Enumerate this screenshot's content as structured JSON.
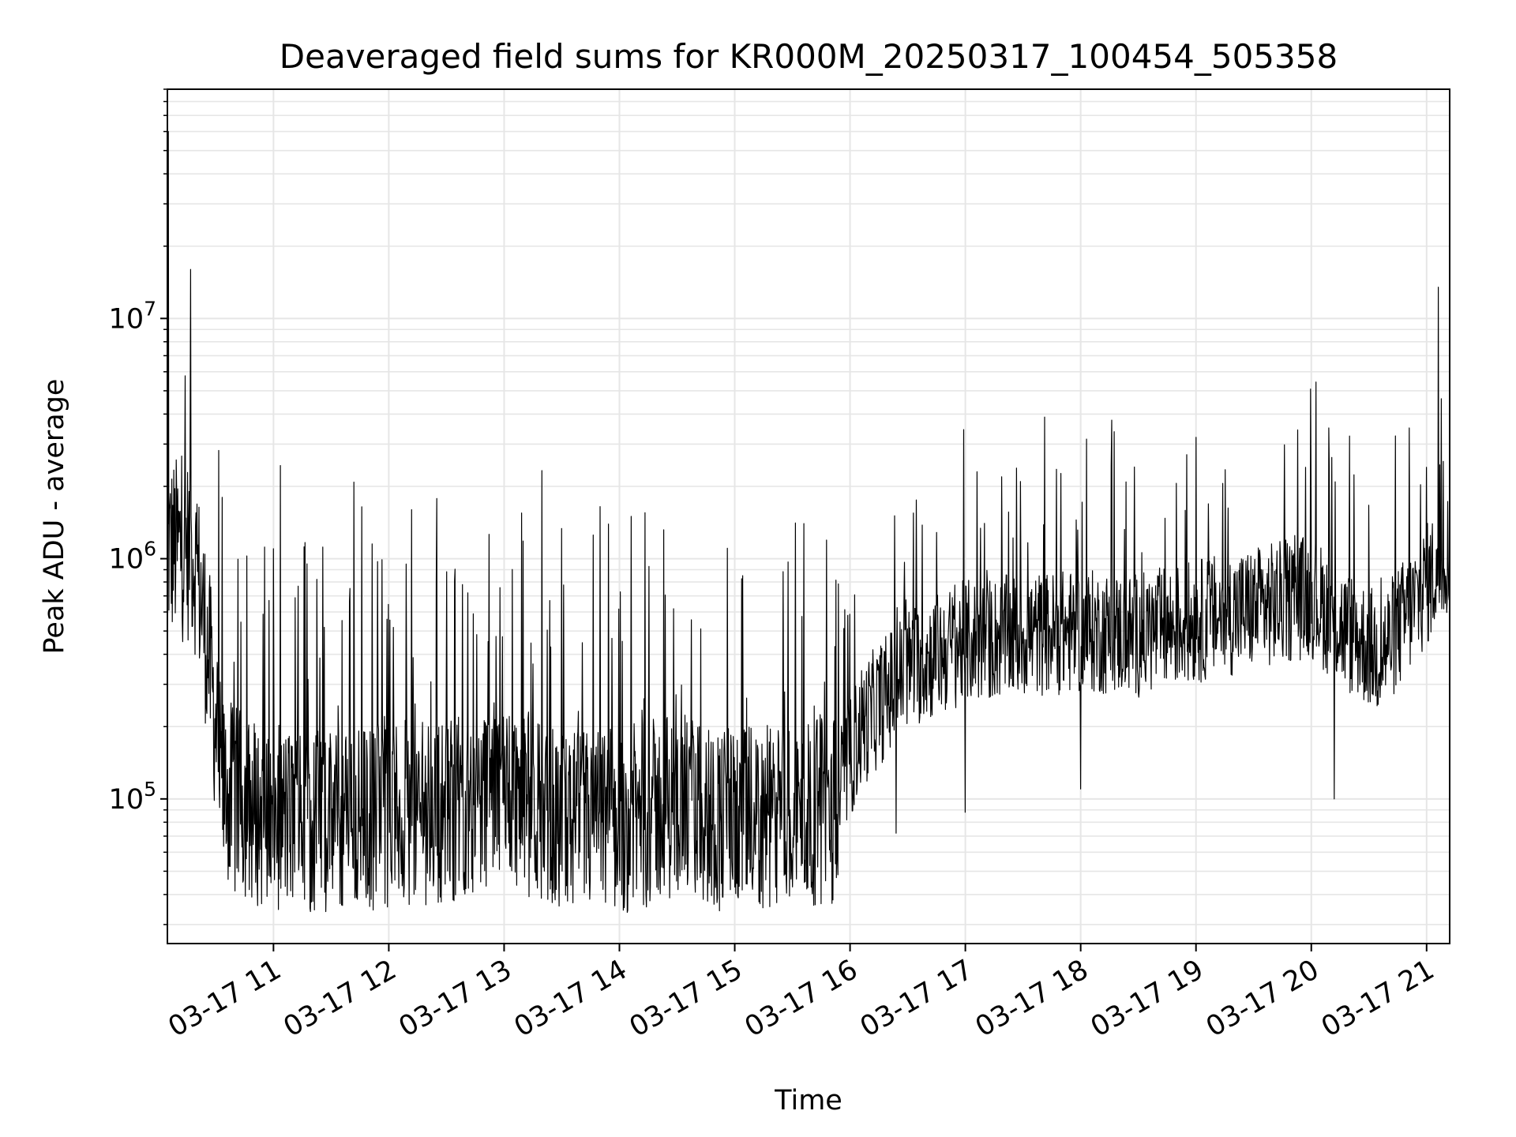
{
  "chart_data": {
    "type": "line",
    "title": "Deaveraged field sums for KR000M_20250317_100454_505358",
    "xlabel": "Time",
    "ylabel": "Peak ADU - average",
    "yscale": "log",
    "ylim": [
      25000,
      90000000
    ],
    "xlim_hours": [
      10.08,
      21.2
    ],
    "grid": true,
    "x_ticks": [
      {
        "hour": 11,
        "label": "03-17 11"
      },
      {
        "hour": 12,
        "label": "03-17 12"
      },
      {
        "hour": 13,
        "label": "03-17 13"
      },
      {
        "hour": 14,
        "label": "03-17 14"
      },
      {
        "hour": 15,
        "label": "03-17 15"
      },
      {
        "hour": 16,
        "label": "03-17 16"
      },
      {
        "hour": 17,
        "label": "03-17 17"
      },
      {
        "hour": 18,
        "label": "03-17 18"
      },
      {
        "hour": 19,
        "label": "03-17 19"
      },
      {
        "hour": 20,
        "label": "03-17 20"
      },
      {
        "hour": 21,
        "label": "03-17 21"
      }
    ],
    "y_ticks": [
      {
        "exp": 5,
        "label": "10",
        "sup": "5"
      },
      {
        "exp": 6,
        "label": "10",
        "sup": "6"
      },
      {
        "exp": 7,
        "label": "10",
        "sup": "7"
      }
    ],
    "series": [
      {
        "name": "field sums",
        "color": "#000000",
        "baseline": [
          [
            10.08,
            1100000
          ],
          [
            10.3,
            1100000
          ],
          [
            10.38,
            650000
          ],
          [
            10.45,
            350000
          ],
          [
            10.55,
            110000
          ],
          [
            10.9,
            85000
          ],
          [
            11.5,
            80000
          ],
          [
            12.0,
            85000
          ],
          [
            12.5,
            90000
          ],
          [
            13.0,
            110000
          ],
          [
            13.5,
            80000
          ],
          [
            14.0,
            80000
          ],
          [
            14.5,
            95000
          ],
          [
            15.0,
            80000
          ],
          [
            15.5,
            85000
          ],
          [
            15.85,
            90000
          ],
          [
            16.1,
            200000
          ],
          [
            16.5,
            350000
          ],
          [
            17.0,
            450000
          ],
          [
            17.5,
            480000
          ],
          [
            18.0,
            500000
          ],
          [
            18.5,
            480000
          ],
          [
            19.0,
            550000
          ],
          [
            19.5,
            620000
          ],
          [
            20.0,
            700000
          ],
          [
            20.3,
            500000
          ],
          [
            20.6,
            400000
          ],
          [
            20.9,
            650000
          ],
          [
            21.2,
            1100000
          ]
        ],
        "spikes": [
          [
            10.09,
            60000000
          ],
          [
            10.28,
            16000000
          ],
          [
            11.0,
            1100000
          ],
          [
            11.6,
            1500000
          ],
          [
            12.2,
            1600000
          ],
          [
            13.15,
            1550000
          ],
          [
            14.1,
            1500000
          ],
          [
            15.6,
            1400000
          ],
          [
            16.55,
            1550000
          ],
          [
            17.1,
            2300000
          ],
          [
            19.0,
            3200000
          ],
          [
            19.95,
            2400000
          ],
          [
            20.15,
            3500000
          ],
          [
            20.85,
            3500000
          ],
          [
            21.1,
            13500000
          ],
          [
            21.0,
            2400000
          ],
          [
            20.2,
            100000
          ],
          [
            18.0,
            110000
          ],
          [
            15.85,
            38000
          ],
          [
            11.6,
            36000
          ],
          [
            17.0,
            88000
          ],
          [
            16.4,
            72000
          ]
        ]
      }
    ]
  }
}
